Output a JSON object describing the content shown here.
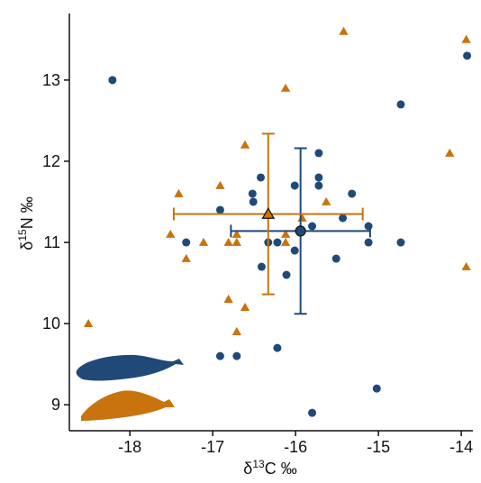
{
  "chart_data": {
    "type": "scatter",
    "x_label": {
      "prefix": "δ",
      "sup": "13",
      "suffix": "C ‰"
    },
    "y_label": {
      "prefix": "δ",
      "sup": "15",
      "suffix": "N ‰"
    },
    "xlim": [
      -18.73,
      -13.86
    ],
    "ylim": [
      8.68,
      13.82
    ],
    "xticks": [
      -18,
      -17,
      -16,
      -15,
      -14
    ],
    "yticks": [
      9,
      10,
      11,
      12,
      13
    ],
    "grid": false,
    "series": [
      {
        "color": "#1f4a78",
        "marker": "circle",
        "x": [
          -18.21,
          -13.93,
          -14.73,
          -15.72,
          -15.72,
          -15.72,
          -16.01,
          -16.42,
          -16.52,
          -16.51,
          -15.32,
          -16.91,
          -15.43,
          -15.12,
          -15.8,
          -17.32,
          -16.33,
          -16.22,
          -15.12,
          -14.73,
          -16.01,
          -15.51,
          -16.41,
          -16.11,
          -16.22,
          -16.91,
          -16.71,
          -15.02,
          -15.8
        ],
        "values": [
          13.0,
          13.3,
          12.7,
          12.1,
          11.8,
          11.7,
          11.7,
          11.8,
          11.6,
          11.5,
          11.6,
          11.4,
          11.3,
          11.2,
          11.2,
          11.0,
          11.0,
          11.0,
          11.0,
          11.0,
          10.9,
          10.8,
          10.7,
          10.6,
          9.7,
          9.6,
          9.6,
          9.2,
          8.9
        ],
        "mean": {
          "x": -15.94,
          "y": 11.14,
          "xerr": 0.84,
          "yerr": 1.02
        }
      },
      {
        "color": "#c8730e",
        "marker": "triangle",
        "x": [
          -15.42,
          -13.94,
          -16.12,
          -16.61,
          -14.14,
          -16.91,
          -17.41,
          -15.63,
          -15.92,
          -17.51,
          -16.12,
          -17.11,
          -16.81,
          -16.71,
          -16.12,
          -16.71,
          -17.32,
          -13.94,
          -16.81,
          -16.61,
          -18.5,
          -16.71
        ],
        "values": [
          13.6,
          13.5,
          12.9,
          12.2,
          12.1,
          11.7,
          11.6,
          11.5,
          11.3,
          11.1,
          11.1,
          11.0,
          11.0,
          11.0,
          11.0,
          11.1,
          10.8,
          10.7,
          10.3,
          10.2,
          10.0,
          9.9
        ],
        "mean": {
          "x": -16.33,
          "y": 11.35,
          "xerr": 1.14,
          "yerr": 0.99
        }
      }
    ]
  }
}
